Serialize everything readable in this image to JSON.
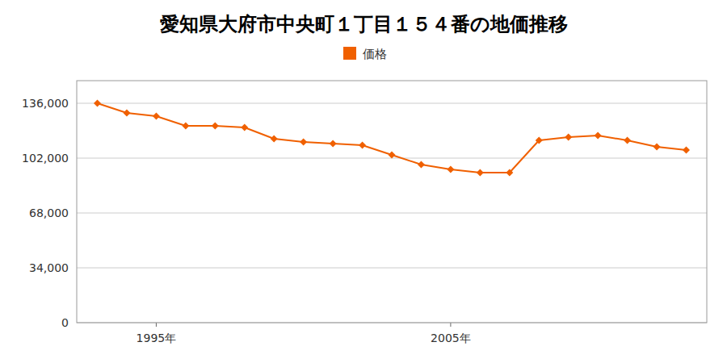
{
  "chart_data": {
    "type": "line",
    "title": "愛知県大府市中央町１丁目１５４番の地価推移",
    "x": [
      1993,
      1994,
      1995,
      1996,
      1997,
      1998,
      1999,
      2000,
      2001,
      2002,
      2003,
      2004,
      2005,
      2006,
      2007,
      2008,
      2009,
      2010,
      2011,
      2012,
      2013
    ],
    "series": [
      {
        "name": "価格",
        "color": "#f06000",
        "marker": "diamond",
        "values": [
          136000,
          130000,
          128000,
          122000,
          122000,
          121000,
          114000,
          112000,
          111000,
          110000,
          104000,
          98000,
          95000,
          93000,
          93000,
          113000,
          115000,
          116000,
          113000,
          109000,
          107000
        ]
      }
    ],
    "xlim": [
      1992.3,
      2013.7
    ],
    "xticks": [
      {
        "value": 1995,
        "label": "1995年"
      },
      {
        "value": 2005,
        "label": "2005年"
      }
    ],
    "ylim": [
      0,
      150000
    ],
    "yticks": [
      0,
      {
        "value": 34000,
        "label": "34,000"
      },
      {
        "value": 68000,
        "label": "68,000"
      },
      {
        "value": 102000,
        "label": "102,000"
      },
      {
        "value": 136000,
        "label": "136,000"
      }
    ],
    "grid": true,
    "legend": "top"
  }
}
